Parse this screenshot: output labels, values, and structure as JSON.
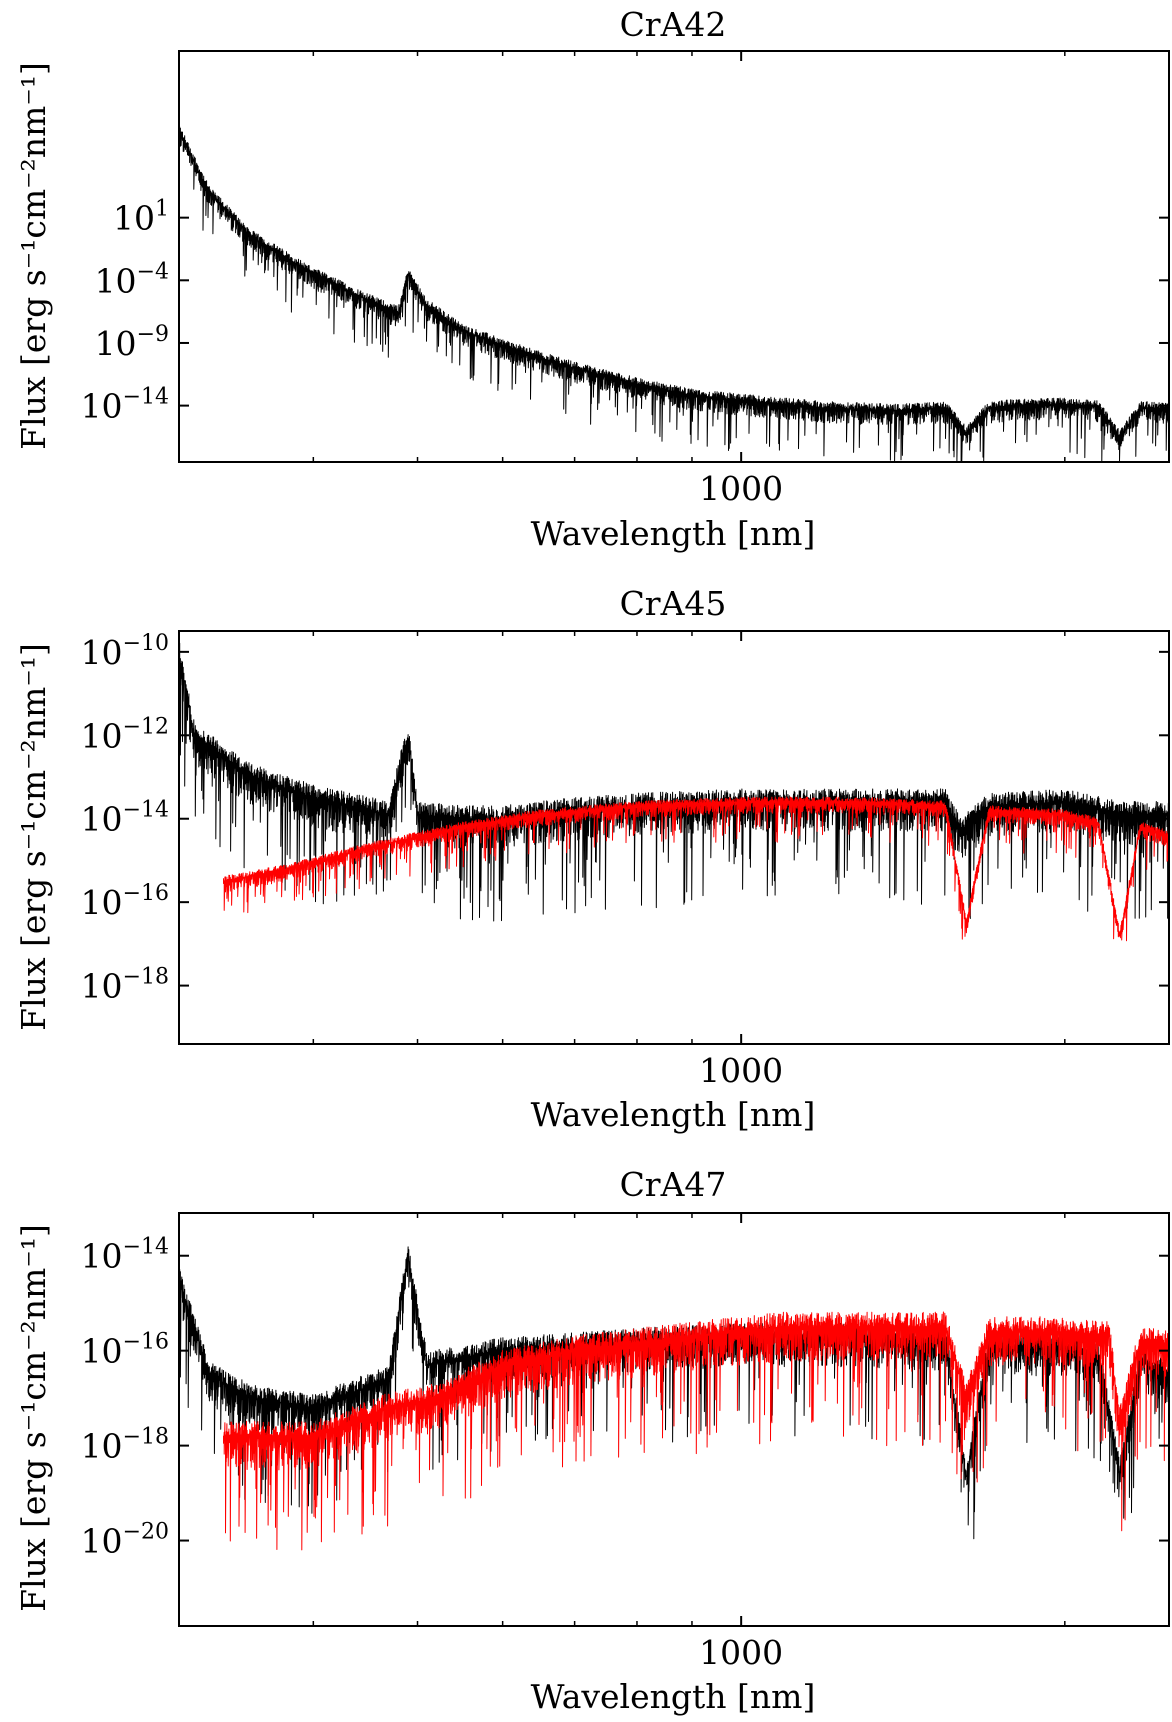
{
  "chart_data": [
    {
      "type": "line",
      "title": "CrA42",
      "xlabel": "Wavelength [nm]",
      "ylabel": "Flux [erg s⁻¹cm⁻²nm⁻¹]",
      "x_scale": "log",
      "y_scale": "log",
      "xlim": [
        300,
        2500
      ],
      "ylim_exp": [
        -18.5,
        14.3
      ],
      "x_ticks": [
        {
          "value": 1000,
          "label": "1000"
        }
      ],
      "y_ticks": [
        {
          "exp": 1,
          "label": "10",
          "sup": "1"
        },
        {
          "exp": -4,
          "label": "10",
          "sup": "−4"
        },
        {
          "exp": -9,
          "label": "10",
          "sup": "−9"
        },
        {
          "exp": -14,
          "label": "10",
          "sup": "−14"
        }
      ],
      "grid": false,
      "series": [
        {
          "color": "#000000",
          "points": [
            [
              300,
              8.0
            ],
            [
              320,
              3.0
            ],
            [
              350,
              -0.5
            ],
            [
              400,
              -3.5
            ],
            [
              450,
              -5.6
            ],
            [
              480,
              -6.6
            ],
            [
              490,
              -3.5
            ],
            [
              510,
              -6.0
            ],
            [
              550,
              -8.0
            ],
            [
              600,
              -9.2
            ],
            [
              650,
              -10.2
            ],
            [
              700,
              -11.0
            ],
            [
              800,
              -12.3
            ],
            [
              900,
              -13.2
            ],
            [
              1000,
              -13.6
            ],
            [
              1200,
              -14.2
            ],
            [
              1400,
              -14.4
            ],
            [
              1550,
              -14.2
            ],
            [
              1620,
              -16.2
            ],
            [
              1700,
              -14.2
            ],
            [
              1800,
              -14.0
            ],
            [
              2000,
              -13.9
            ],
            [
              2150,
              -14.1
            ],
            [
              2250,
              -16.5
            ],
            [
              2350,
              -14.2
            ],
            [
              2500,
              -14.3
            ]
          ],
          "noise": 1.5
        }
      ]
    },
    {
      "type": "line",
      "title": "CrA45",
      "xlabel": "Wavelength [nm]",
      "ylabel": "Flux [erg s⁻¹cm⁻²nm⁻¹]",
      "x_scale": "log",
      "y_scale": "log",
      "xlim": [
        300,
        2500
      ],
      "ylim_exp": [
        -19.4,
        -9.5
      ],
      "x_ticks": [
        {
          "value": 1000,
          "label": "1000"
        }
      ],
      "y_ticks": [
        {
          "exp": -10,
          "label": "10",
          "sup": "−10"
        },
        {
          "exp": -12,
          "label": "10",
          "sup": "−12"
        },
        {
          "exp": -14,
          "label": "10",
          "sup": "−14"
        },
        {
          "exp": -16,
          "label": "10",
          "sup": "−16"
        },
        {
          "exp": -18,
          "label": "10",
          "sup": "−18"
        }
      ],
      "grid": false,
      "series": [
        {
          "color": "#000000",
          "points": [
            [
              300,
              -10.0
            ],
            [
              310,
              -12.0
            ],
            [
              350,
              -13.0
            ],
            [
              400,
              -13.5
            ],
            [
              470,
              -13.9
            ],
            [
              490,
              -12.0
            ],
            [
              500,
              -13.9
            ],
            [
              550,
              -14.0
            ],
            [
              600,
              -14.0
            ],
            [
              700,
              -13.8
            ],
            [
              800,
              -13.7
            ],
            [
              1000,
              -13.6
            ],
            [
              1300,
              -13.6
            ],
            [
              1550,
              -13.6
            ],
            [
              1600,
              -14.3
            ],
            [
              1700,
              -13.7
            ],
            [
              2000,
              -13.6
            ],
            [
              2250,
              -13.9
            ],
            [
              2500,
              -13.9
            ]
          ],
          "noise": 0.9
        },
        {
          "color": "#ff0000",
          "points": [
            [
              330,
              -15.5
            ],
            [
              380,
              -15.2
            ],
            [
              450,
              -14.7
            ],
            [
              550,
              -14.2
            ],
            [
              650,
              -13.9
            ],
            [
              800,
              -13.7
            ],
            [
              1000,
              -13.6
            ],
            [
              1300,
              -13.6
            ],
            [
              1550,
              -13.7
            ],
            [
              1620,
              -16.5
            ],
            [
              1700,
              -13.8
            ],
            [
              2000,
              -13.9
            ],
            [
              2150,
              -14.1
            ],
            [
              2250,
              -16.8
            ],
            [
              2350,
              -14.2
            ],
            [
              2500,
              -14.4
            ]
          ],
          "noise": 0.35
        }
      ]
    },
    {
      "type": "line",
      "title": "CrA47",
      "xlabel": "Wavelength [nm]",
      "ylabel": "Flux [erg s⁻¹cm⁻²nm⁻¹]",
      "x_scale": "log",
      "y_scale": "log",
      "xlim": [
        300,
        2500
      ],
      "ylim_exp": [
        -21.8,
        -13.1
      ],
      "x_ticks": [
        {
          "value": 1000,
          "label": "1000"
        }
      ],
      "y_ticks": [
        {
          "exp": -14,
          "label": "10",
          "sup": "−14"
        },
        {
          "exp": -16,
          "label": "10",
          "sup": "−16"
        },
        {
          "exp": -18,
          "label": "10",
          "sup": "−18"
        },
        {
          "exp": -20,
          "label": "10",
          "sup": "−20"
        }
      ],
      "grid": false,
      "series": [
        {
          "color": "#000000",
          "points": [
            [
              300,
              -14.5
            ],
            [
              320,
              -16.5
            ],
            [
              350,
              -17.0
            ],
            [
              400,
              -17.2
            ],
            [
              470,
              -16.6
            ],
            [
              490,
              -14.0
            ],
            [
              510,
              -16.3
            ],
            [
              600,
              -16.0
            ],
            [
              700,
              -15.9
            ],
            [
              800,
              -15.8
            ],
            [
              1000,
              -15.7
            ],
            [
              1300,
              -15.7
            ],
            [
              1550,
              -15.8
            ],
            [
              1620,
              -18.7
            ],
            [
              1700,
              -15.9
            ],
            [
              2000,
              -15.9
            ],
            [
              2150,
              -16.1
            ],
            [
              2250,
              -18.6
            ],
            [
              2350,
              -16.2
            ],
            [
              2500,
              -16.5
            ]
          ],
          "noise": 0.8
        },
        {
          "color": "#ff0000",
          "points": [
            [
              330,
              -17.8
            ],
            [
              400,
              -17.8
            ],
            [
              470,
              -17.2
            ],
            [
              520,
              -17.0
            ],
            [
              600,
              -16.3
            ],
            [
              700,
              -16.0
            ],
            [
              900,
              -15.7
            ],
            [
              1100,
              -15.5
            ],
            [
              1300,
              -15.5
            ],
            [
              1550,
              -15.5
            ],
            [
              1620,
              -17.0
            ],
            [
              1700,
              -15.6
            ],
            [
              2000,
              -15.6
            ],
            [
              2200,
              -15.7
            ],
            [
              2250,
              -17.5
            ],
            [
              2350,
              -15.8
            ],
            [
              2500,
              -15.9
            ]
          ],
          "noise": 0.9
        }
      ]
    }
  ]
}
